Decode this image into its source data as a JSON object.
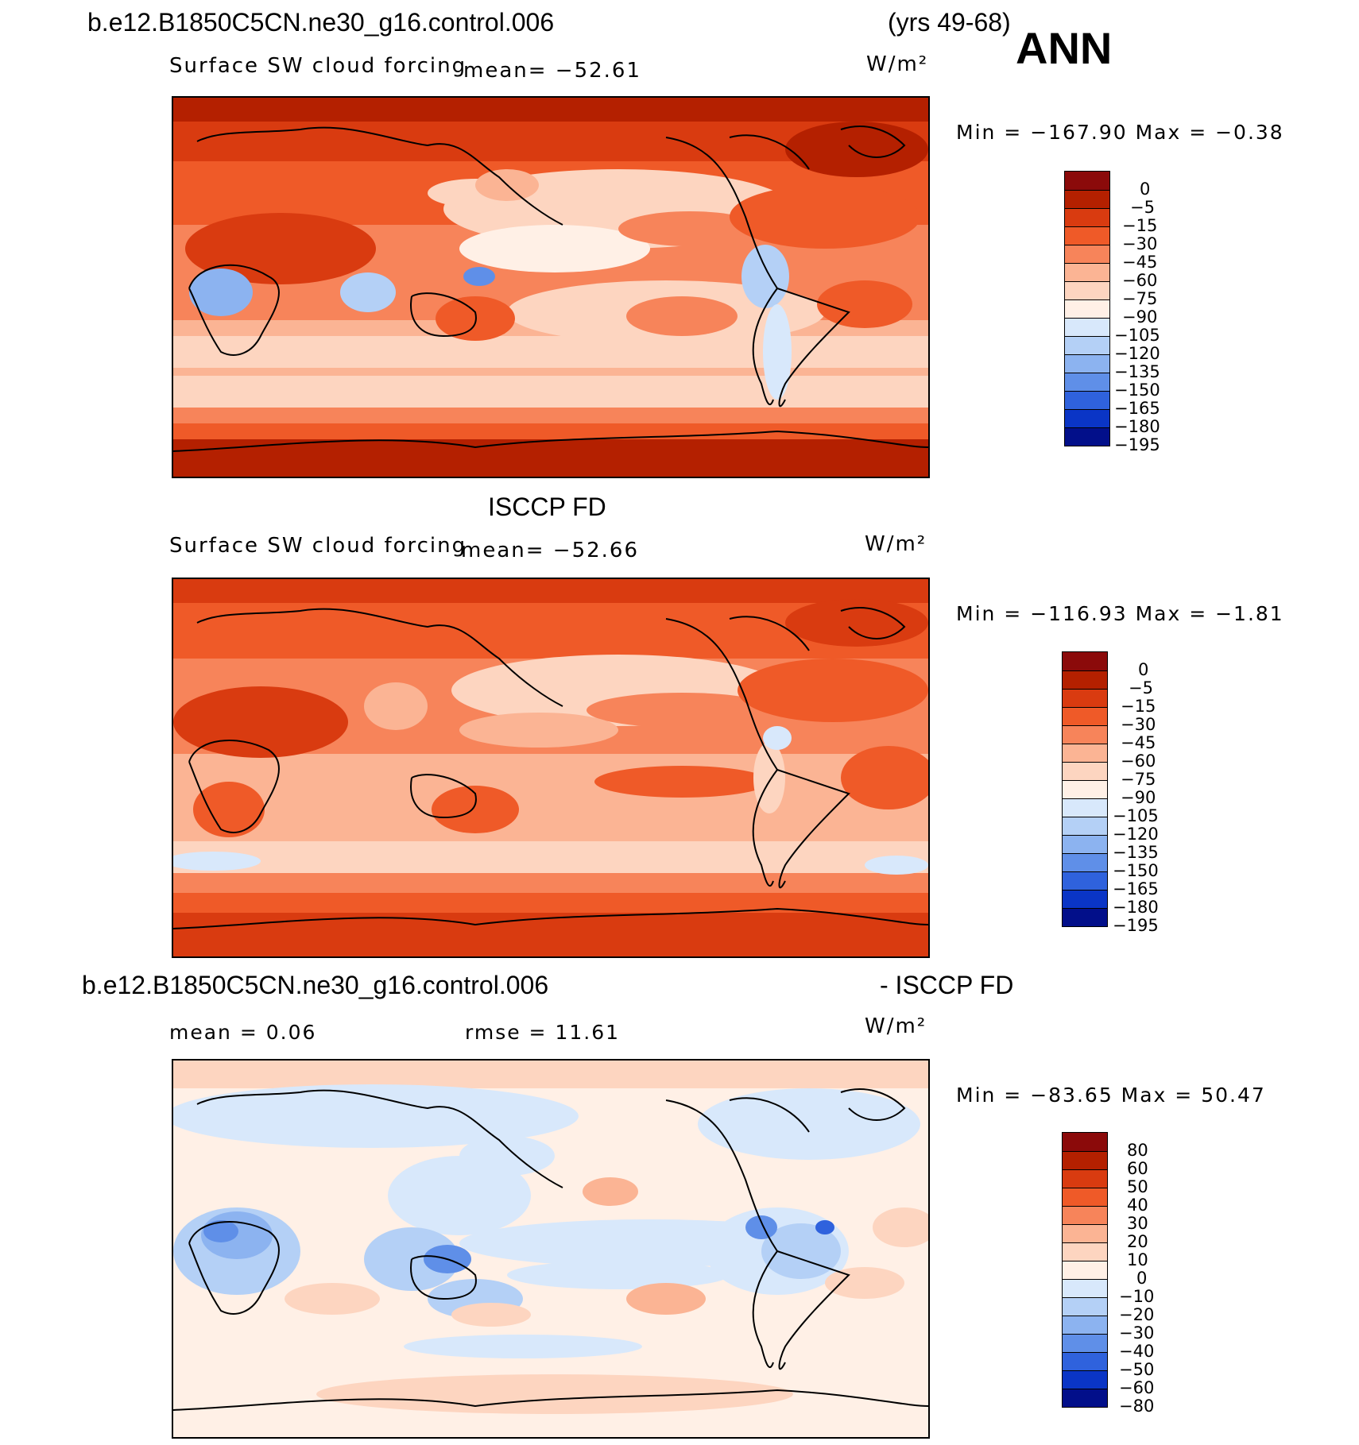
{
  "header": {
    "case_name": "b.e12.B1850C5CN.ne30_g16.control.006",
    "years": "(yrs 49-68)",
    "season": "ANN"
  },
  "panels": [
    {
      "title": "",
      "variable": "Surface SW cloud forcing",
      "mean_label": "mean= −52.61",
      "units": "W/m²",
      "minmax": "Min = −167.90 Max =  −0.38",
      "colorbar_labels": [
        "0",
        "−5",
        "−15",
        "−30",
        "−45",
        "−60",
        "−75",
        "−90",
        "−105",
        "−120",
        "−135",
        "−150",
        "−165",
        "−180",
        "−195"
      ]
    },
    {
      "title": "ISCCP FD",
      "variable": "Surface SW cloud forcing",
      "mean_label": "mean= −52.66",
      "units": "W/m²",
      "minmax": "Min = −116.93 Max =  −1.81",
      "colorbar_labels": [
        "0",
        "−5",
        "−15",
        "−30",
        "−45",
        "−60",
        "−75",
        "−90",
        "−105",
        "−120",
        "−135",
        "−150",
        "−165",
        "−180",
        "−195"
      ]
    },
    {
      "title_left": "b.e12.B1850C5CN.ne30_g16.control.006",
      "title_right": "- ISCCP FD",
      "mean_label": "mean =   0.06",
      "rmse_label": "rmse =   11.61",
      "units": "W/m²",
      "minmax": "Min = −83.65 Max =  50.47",
      "colorbar_labels": [
        "80",
        "60",
        "50",
        "40",
        "30",
        "20",
        "10",
        "0",
        "−10",
        "−20",
        "−30",
        "−40",
        "−50",
        "−60",
        "−80"
      ]
    }
  ],
  "chart_data": [
    {
      "type": "heatmap",
      "title": "Surface SW cloud forcing",
      "units": "W/m²",
      "mean": -52.61,
      "min": -167.9,
      "max": -0.38,
      "contour_levels": [
        0,
        -5,
        -15,
        -30,
        -45,
        -60,
        -75,
        -90,
        -105,
        -120,
        -135,
        -150,
        -165,
        -180,
        -195
      ],
      "colors": [
        "#8b0a0a",
        "#b42000",
        "#d93b10",
        "#ef5a28",
        "#f7845a",
        "#fbb494",
        "#fdd5c0",
        "#fff0e6",
        "#d8e8fb",
        "#b4d0f6",
        "#8cb3f0",
        "#5f8fe8",
        "#2f62dd",
        "#0a35c6",
        "#020f8a"
      ]
    },
    {
      "type": "heatmap",
      "title": "ISCCP FD",
      "units": "W/m²",
      "mean": -52.66,
      "min": -116.93,
      "max": -1.81,
      "contour_levels": [
        0,
        -5,
        -15,
        -30,
        -45,
        -60,
        -75,
        -90,
        -105,
        -120,
        -135,
        -150,
        -165,
        -180,
        -195
      ],
      "colors": [
        "#8b0a0a",
        "#b42000",
        "#d93b10",
        "#ef5a28",
        "#f7845a",
        "#fbb494",
        "#fdd5c0",
        "#fff0e6",
        "#d8e8fb",
        "#b4d0f6",
        "#8cb3f0",
        "#5f8fe8",
        "#2f62dd",
        "#0a35c6",
        "#020f8a"
      ]
    },
    {
      "type": "heatmap",
      "title": "b.e12.B1850C5CN.ne30_g16.control.006 - ISCCP FD",
      "units": "W/m²",
      "mean": 0.06,
      "rmse": 11.61,
      "min": -83.65,
      "max": 50.47,
      "contour_levels": [
        80,
        60,
        50,
        40,
        30,
        20,
        10,
        0,
        -10,
        -20,
        -30,
        -40,
        -50,
        -60,
        -80
      ],
      "colors": [
        "#8b0a0a",
        "#b42000",
        "#d93b10",
        "#ef5a28",
        "#f7845a",
        "#fbb494",
        "#fdd5c0",
        "#fff0e6",
        "#d8e8fb",
        "#b4d0f6",
        "#8cb3f0",
        "#5f8fe8",
        "#2f62dd",
        "#0a35c6",
        "#020f8a"
      ]
    }
  ]
}
